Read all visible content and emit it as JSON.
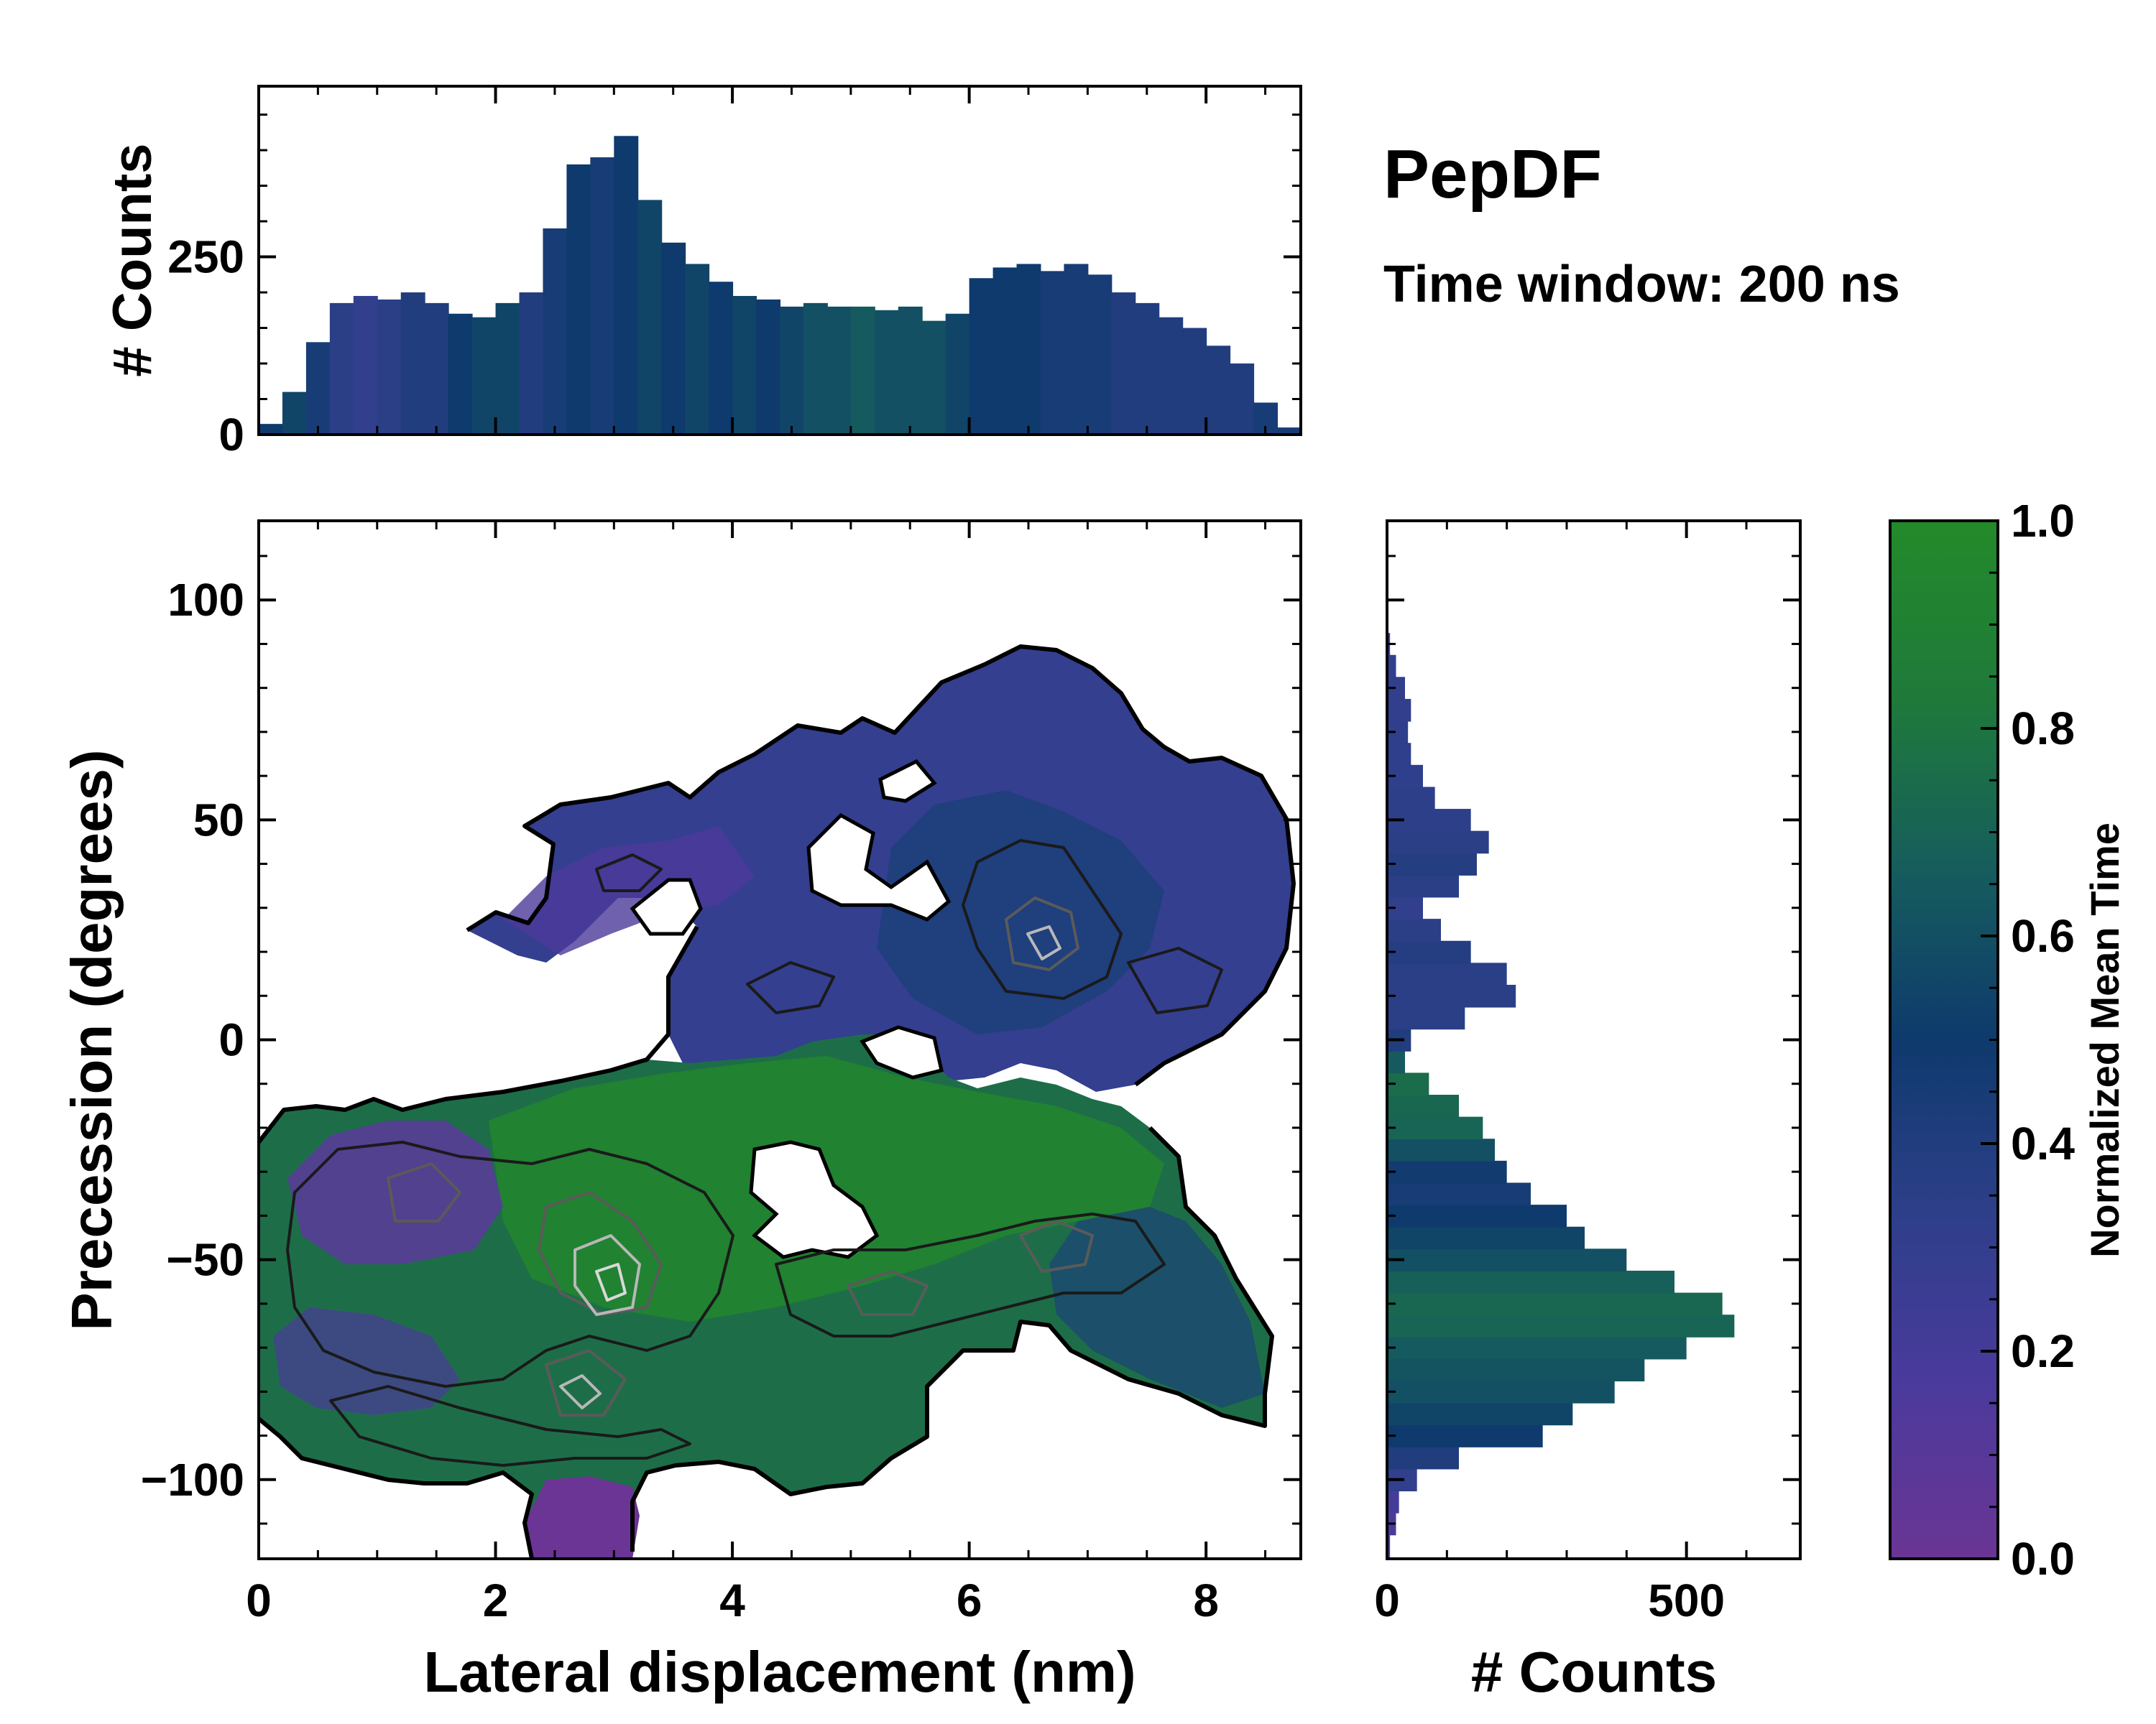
{
  "figure": {
    "title": "PepDF",
    "subtitle": "Time window: 200 ns"
  },
  "chart_data": [
    {
      "id": "main_heatmap",
      "type": "heatmap",
      "xlabel": "Lateral displacement (nm)",
      "ylabel": "Precession (degrees)",
      "xlim": [
        0,
        8.8
      ],
      "ylim": [
        -118,
        118
      ],
      "xticks": [
        0,
        2,
        4,
        6,
        8
      ],
      "yticks": [
        -100,
        -50,
        0,
        50,
        100
      ],
      "xtick_labels": [
        "0",
        "2",
        "4",
        "6",
        "8"
      ],
      "ytick_labels": [
        "−100",
        "−50",
        "0",
        "50",
        "100"
      ],
      "color_value_name": "Normalized Mean Time",
      "regions": [
        {
          "name": "lower-left basin",
          "x": [
            0.1,
            4.2
          ],
          "y": [
            -105,
            -18
          ],
          "mean_time": 0.7
        },
        {
          "name": "lower-left purple core",
          "x": [
            0.6,
            2.0
          ],
          "y": [
            -60,
            -20
          ],
          "mean_time": 0.15
        },
        {
          "name": "bottom tail",
          "x": [
            2.2,
            3.4
          ],
          "y": [
            -118,
            -95
          ],
          "mean_time": 0.12
        },
        {
          "name": "central green band",
          "x": [
            2.0,
            7.8
          ],
          "y": [
            -90,
            -5
          ],
          "mean_time": 0.72
        },
        {
          "name": "right lower blue",
          "x": [
            6.8,
            8.5
          ],
          "y": [
            -95,
            -40
          ],
          "mean_time": 0.55
        },
        {
          "name": "upper blue-purple lobe",
          "x": [
            1.8,
            8.7
          ],
          "y": [
            0,
            92
          ],
          "mean_time": 0.35
        }
      ],
      "contour_peaks": [
        {
          "x": 3.0,
          "y": -60
        },
        {
          "x": 3.0,
          "y": -80
        },
        {
          "x": 6.5,
          "y": 22
        },
        {
          "x": 6.8,
          "y": -47
        }
      ]
    },
    {
      "id": "top_histogram",
      "type": "bar",
      "ylabel": "# Counts",
      "xlim": [
        0,
        8.8
      ],
      "ylim": [
        0,
        490
      ],
      "yticks": [
        0,
        250
      ],
      "ytick_labels": [
        "0",
        "250"
      ],
      "x": [
        0.1,
        0.3,
        0.5,
        0.7,
        0.9,
        1.1,
        1.3,
        1.5,
        1.7,
        1.9,
        2.1,
        2.3,
        2.5,
        2.7,
        2.9,
        3.1,
        3.3,
        3.5,
        3.7,
        3.9,
        4.1,
        4.3,
        4.5,
        4.7,
        4.9,
        5.1,
        5.3,
        5.5,
        5.7,
        5.9,
        6.1,
        6.3,
        6.5,
        6.7,
        6.9,
        7.1,
        7.3,
        7.5,
        7.7,
        7.9,
        8.1,
        8.3,
        8.5,
        8.7
      ],
      "values": [
        15,
        60,
        130,
        185,
        195,
        190,
        200,
        185,
        170,
        165,
        185,
        200,
        290,
        380,
        390,
        420,
        330,
        270,
        240,
        215,
        195,
        190,
        180,
        185,
        180,
        180,
        175,
        180,
        160,
        170,
        220,
        235,
        240,
        230,
        240,
        225,
        200,
        185,
        165,
        150,
        125,
        100,
        45,
        10
      ],
      "mean_time": [
        0.5,
        0.55,
        0.45,
        0.35,
        0.3,
        0.35,
        0.4,
        0.4,
        0.5,
        0.55,
        0.55,
        0.4,
        0.45,
        0.5,
        0.45,
        0.5,
        0.55,
        0.5,
        0.55,
        0.5,
        0.55,
        0.5,
        0.55,
        0.6,
        0.6,
        0.65,
        0.6,
        0.6,
        0.6,
        0.55,
        0.5,
        0.5,
        0.5,
        0.45,
        0.45,
        0.45,
        0.4,
        0.4,
        0.4,
        0.4,
        0.4,
        0.4,
        0.45,
        0.45
      ]
    },
    {
      "id": "right_histogram",
      "type": "bar",
      "orientation": "horizontal",
      "xlabel": "# Counts",
      "ylim": [
        -118,
        118
      ],
      "xlim": [
        0,
        690
      ],
      "xticks": [
        0,
        500
      ],
      "xtick_labels": [
        "0",
        "500"
      ],
      "y": [
        -115,
        -110,
        -105,
        -100,
        -95,
        -90,
        -85,
        -80,
        -75,
        -70,
        -65,
        -60,
        -55,
        -50,
        -45,
        -40,
        -35,
        -30,
        -25,
        -20,
        -15,
        -10,
        -5,
        0,
        5,
        10,
        15,
        20,
        25,
        30,
        35,
        40,
        45,
        50,
        55,
        60,
        65,
        70,
        75,
        80,
        85,
        90
      ],
      "values": [
        5,
        15,
        20,
        50,
        120,
        260,
        310,
        380,
        430,
        500,
        580,
        560,
        480,
        400,
        330,
        300,
        240,
        200,
        180,
        160,
        120,
        70,
        30,
        40,
        130,
        215,
        200,
        140,
        90,
        60,
        120,
        150,
        170,
        140,
        80,
        60,
        40,
        35,
        40,
        30,
        15,
        5
      ],
      "mean_time": [
        0.1,
        0.12,
        0.15,
        0.3,
        0.4,
        0.5,
        0.55,
        0.6,
        0.62,
        0.65,
        0.7,
        0.72,
        0.68,
        0.6,
        0.55,
        0.5,
        0.45,
        0.48,
        0.6,
        0.7,
        0.72,
        0.75,
        0.65,
        0.4,
        0.35,
        0.35,
        0.35,
        0.38,
        0.35,
        0.3,
        0.35,
        0.38,
        0.35,
        0.33,
        0.33,
        0.32,
        0.32,
        0.32,
        0.3,
        0.3,
        0.3,
        0.3
      ]
    },
    {
      "id": "colorbar",
      "type": "colorbar",
      "label": "Normalized Mean Time",
      "ylim": [
        0,
        1
      ],
      "ticks": [
        0.0,
        0.2,
        0.4,
        0.6,
        0.8,
        1.0
      ],
      "tick_labels": [
        "0.0",
        "0.2",
        "0.4",
        "0.6",
        "0.8",
        "1.0"
      ],
      "colors": [
        "#6a3594",
        "#3f3e9a",
        "#2e3f8a",
        "#0e3a6d",
        "#165e5c",
        "#1f7a3a",
        "#238a2a"
      ]
    }
  ]
}
